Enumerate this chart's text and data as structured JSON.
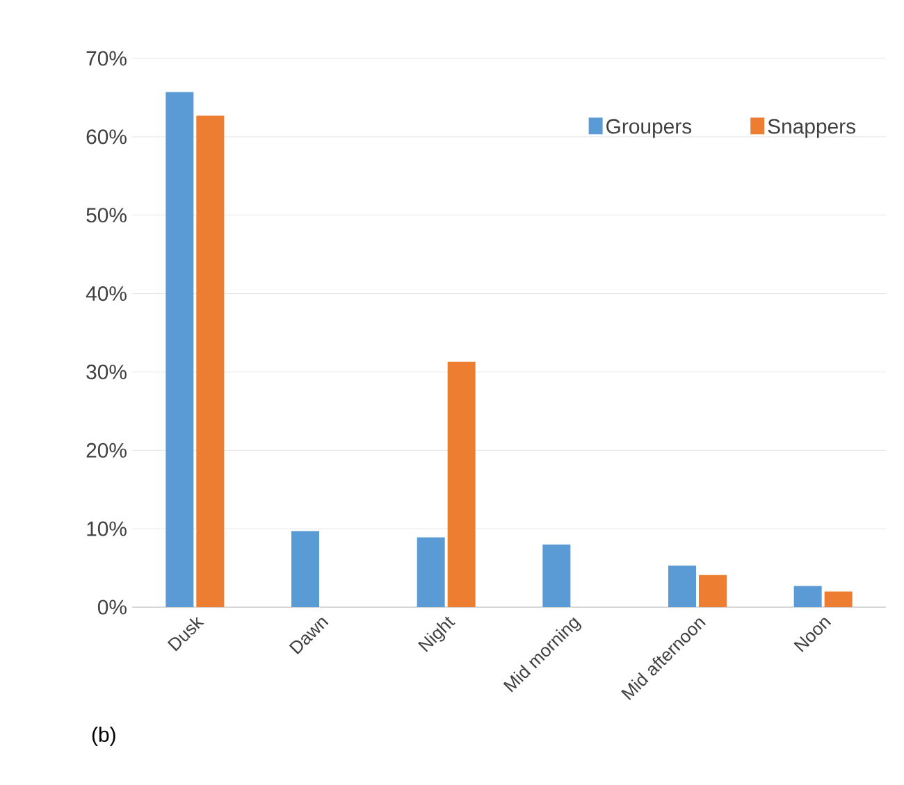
{
  "chart_data": {
    "type": "bar",
    "categories": [
      "Dusk",
      "Dawn",
      "Night",
      "Mid morning",
      "Mid afternoon",
      "Noon"
    ],
    "series": [
      {
        "name": "Groupers",
        "color": "#5b9bd5",
        "values": [
          65.7,
          9.7,
          8.9,
          8.0,
          5.3,
          2.7
        ]
      },
      {
        "name": "Snappers",
        "color": "#ed7d31",
        "values": [
          62.7,
          null,
          31.3,
          null,
          4.1,
          2.0
        ]
      }
    ],
    "ylim": [
      0,
      70
    ],
    "yticks": [
      {
        "value": 0,
        "label": "0%"
      },
      {
        "value": 10,
        "label": "10%"
      },
      {
        "value": 20,
        "label": "20%"
      },
      {
        "value": 30,
        "label": "30%"
      },
      {
        "value": 40,
        "label": "40%"
      },
      {
        "value": 50,
        "label": "50%"
      },
      {
        "value": 60,
        "label": "60%"
      },
      {
        "value": 70,
        "label": "70%"
      }
    ],
    "grid": "y",
    "legend": "top right",
    "annotations": [
      "(b)"
    ]
  }
}
